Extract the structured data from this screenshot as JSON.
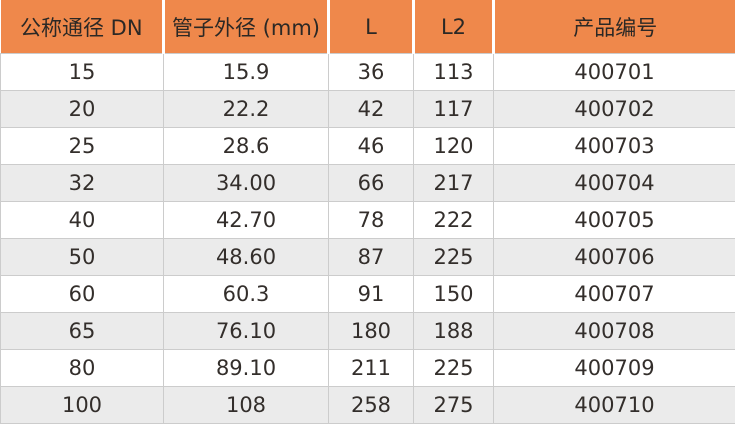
{
  "colors": {
    "header_bg": "#EF884B",
    "header_separator": "#FFFFFF",
    "header_text": "#2B2825",
    "row_bg": "#FFFFFF",
    "row_alt_bg": "#EBEBEB",
    "cell_border": "#CCCCCC",
    "body_text": "#332E2B"
  },
  "table": {
    "columns": [
      "公称通径 DN",
      "管子外径 (mm)",
      "L",
      "L2",
      "产品编号"
    ],
    "rows": [
      [
        "15",
        "15.9",
        "36",
        "113",
        "400701"
      ],
      [
        "20",
        "22.2",
        "42",
        "117",
        "400702"
      ],
      [
        "25",
        "28.6",
        "46",
        "120",
        "400703"
      ],
      [
        "32",
        "34.00",
        "66",
        "217",
        "400704"
      ],
      [
        "40",
        "42.70",
        "78",
        "222",
        "400705"
      ],
      [
        "50",
        "48.60",
        "87",
        "225",
        "400706"
      ],
      [
        "60",
        "60.3",
        "91",
        "150",
        "400707"
      ],
      [
        "65",
        "76.10",
        "180",
        "188",
        "400708"
      ],
      [
        "80",
        "89.10",
        "211",
        "225",
        "400709"
      ],
      [
        "100",
        "108",
        "258",
        "275",
        "400710"
      ]
    ]
  }
}
